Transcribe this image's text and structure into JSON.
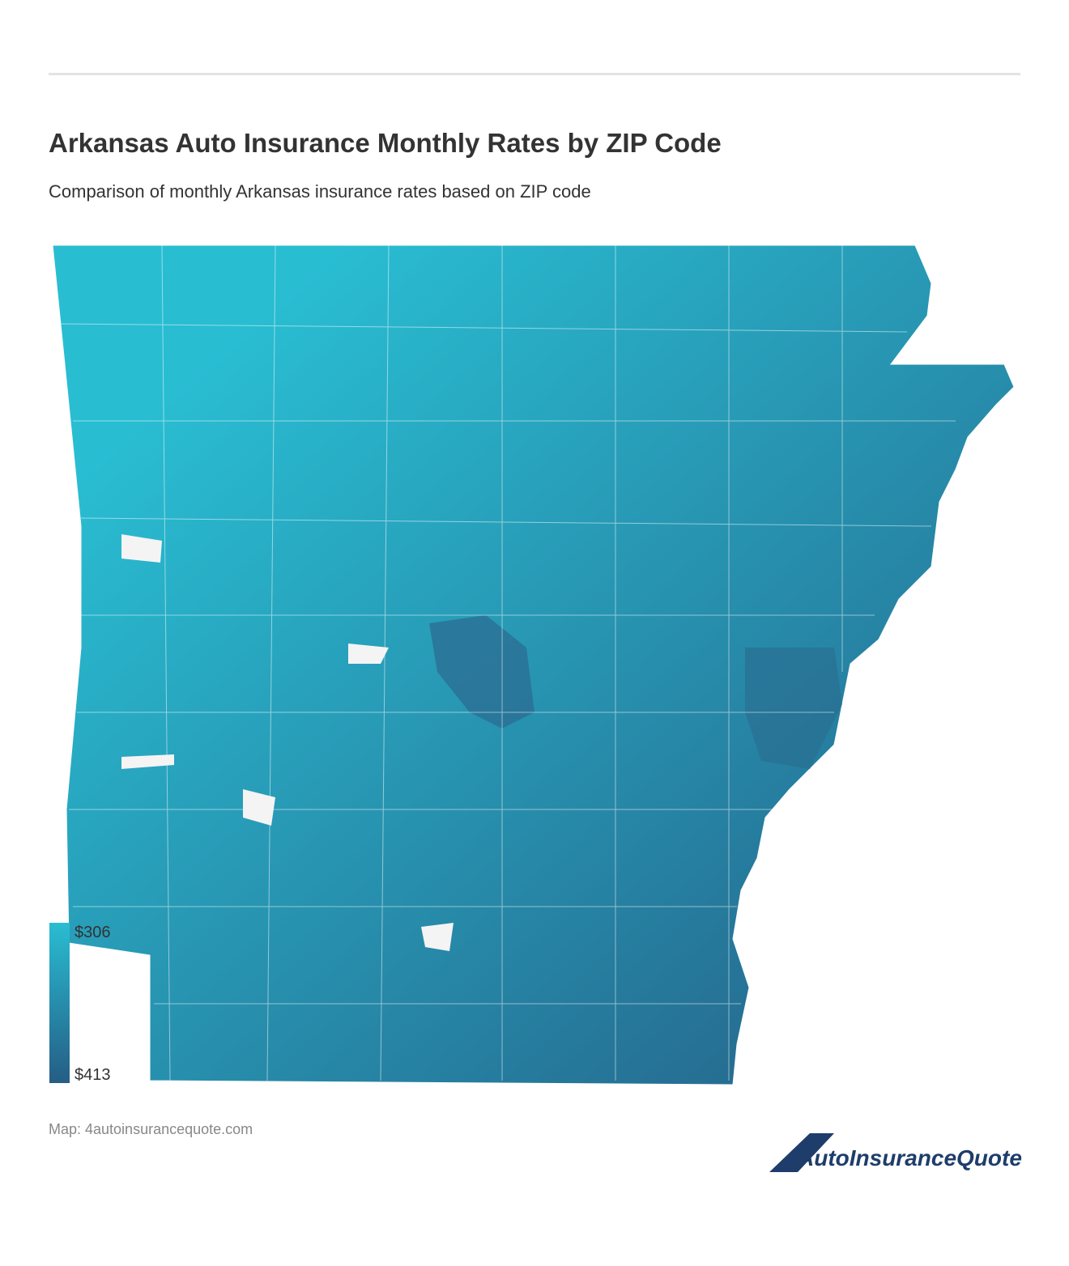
{
  "header": {
    "title": "Arkansas Auto Insurance Monthly Rates by ZIP Code",
    "subtitle": "Comparison of monthly Arkansas insurance rates based on ZIP code"
  },
  "legend": {
    "min_label": "$306",
    "max_label": "$413",
    "color_min": "#29bdd2",
    "color_max": "#255d85"
  },
  "footer": {
    "source": "Map: 4autoinsurancequote.com",
    "logo": "AutoInsuranceQuote"
  }
}
